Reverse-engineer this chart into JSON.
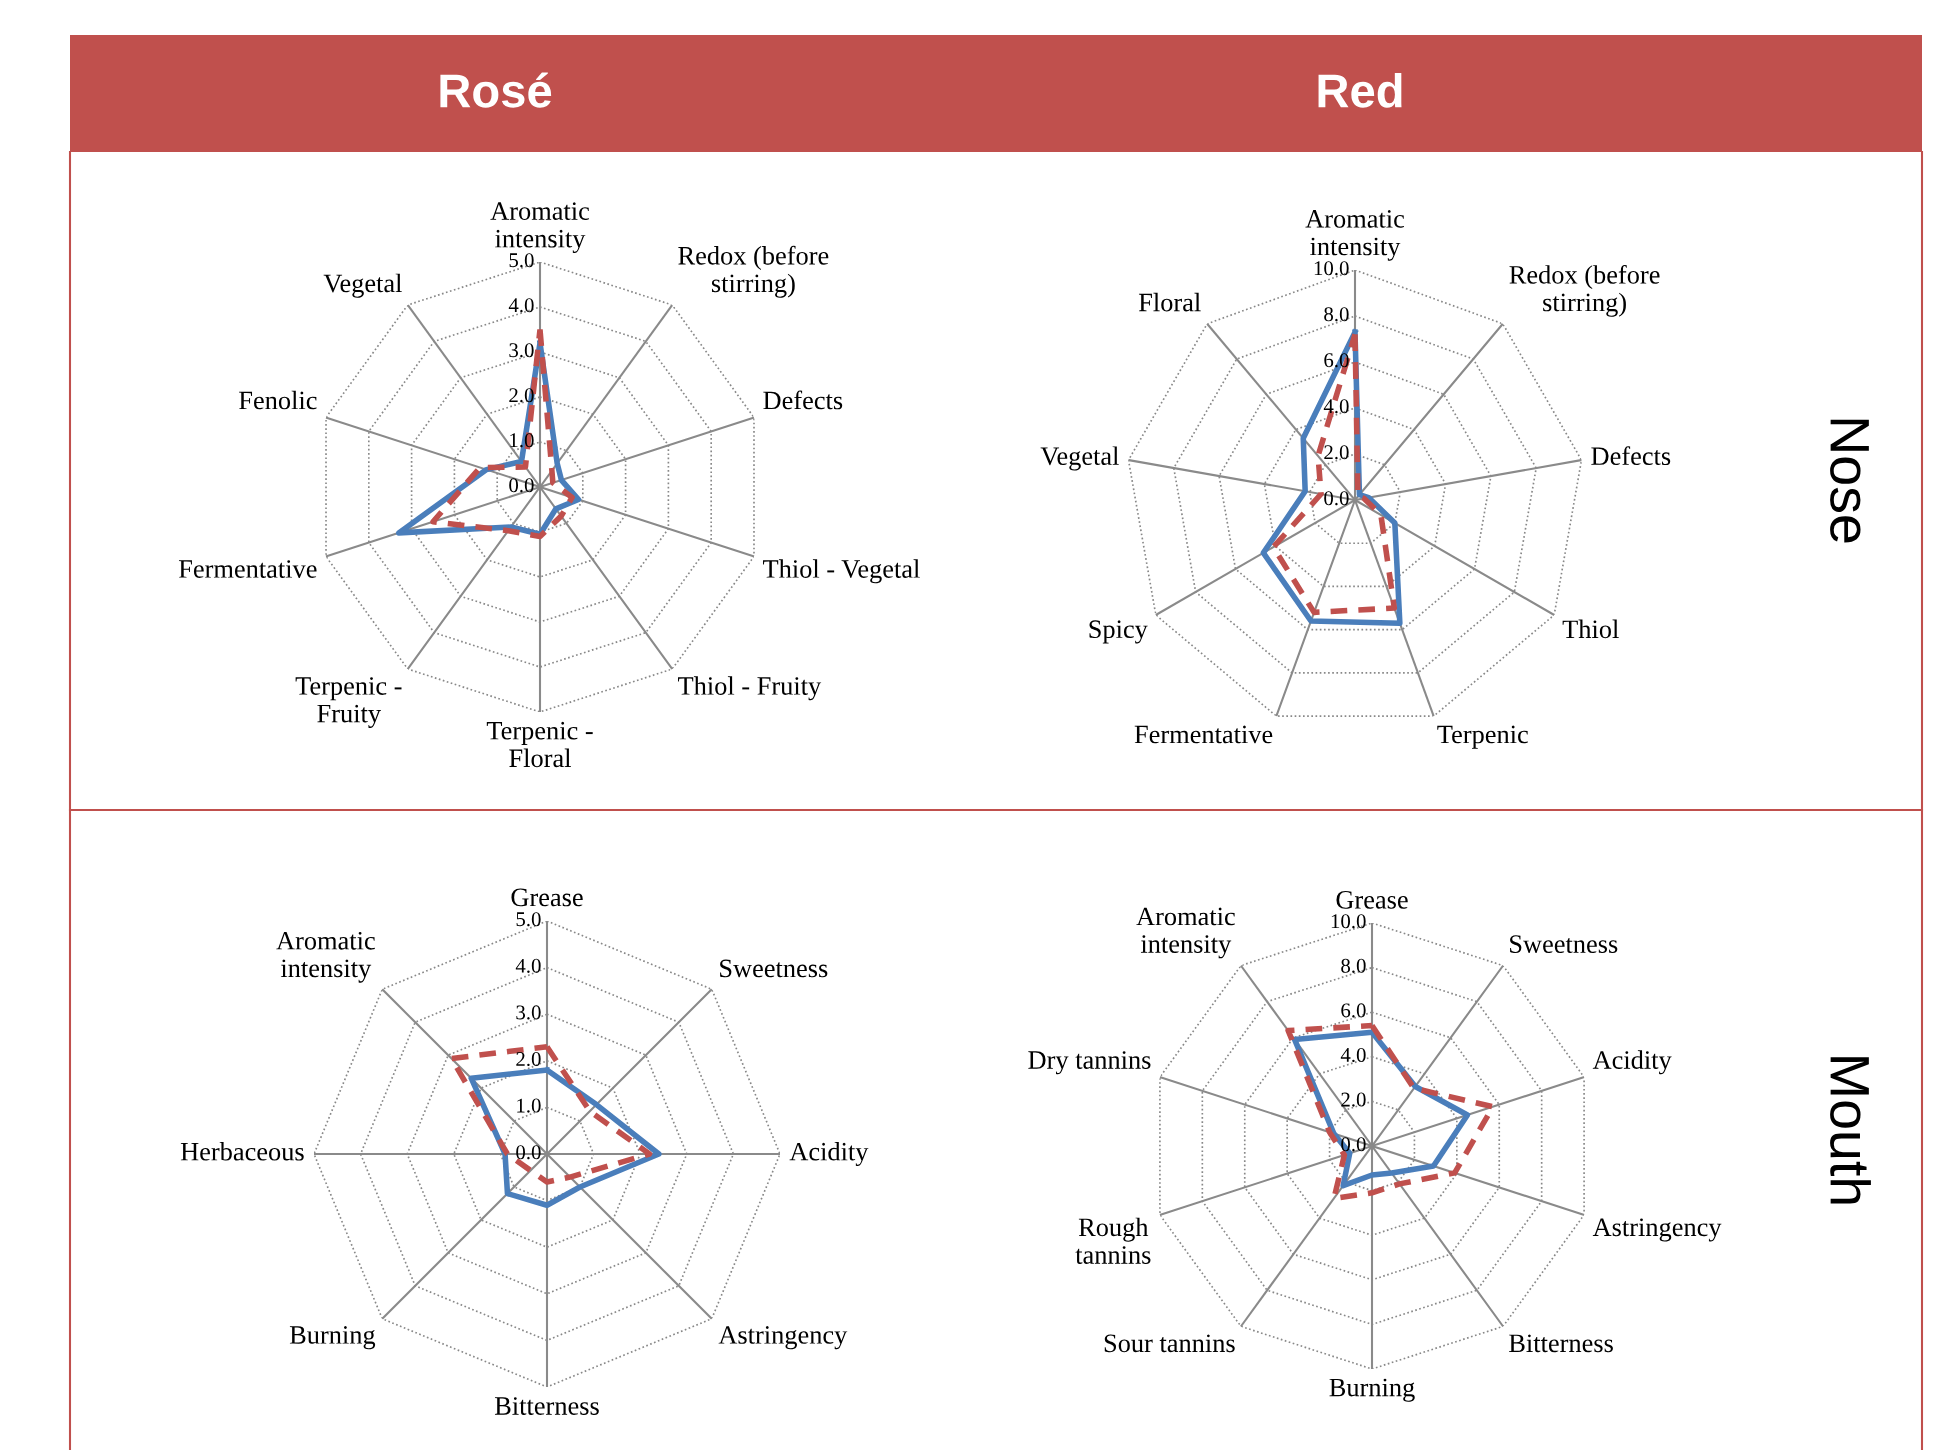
{
  "chart_data": [
    {
      "type": "radar",
      "title": "Rosé",
      "categories": [
        "Aromatic\nintensity",
        "Redox (before\nstirring)",
        "Defects",
        "Thiol - Vegetal",
        "Thiol - Fruity",
        "Terpenic -\nFloral",
        "Terpenic -\nFruity",
        "Fermentative",
        "Fenolic",
        "Vegetal"
      ],
      "ylim": [
        0,
        5
      ],
      "yticks": [
        {
          "value": 0,
          "label": "0.0"
        },
        {
          "value": 1,
          "label": "1.0"
        },
        {
          "value": 2,
          "label": "2.0"
        },
        {
          "value": 3,
          "label": "3.0"
        },
        {
          "value": 4,
          "label": "4.0"
        },
        {
          "value": 5,
          "label": "5.0"
        }
      ],
      "grid": true,
      "legend": false,
      "marker": "none",
      "series": [
        {
          "color": "#4a7ebb",
          "line_style": "solid",
          "values": [
            3.2,
            0.65,
            0.5,
            0.9,
            0.6,
            1.05,
            1.1,
            3.3,
            1.25,
            0.7
          ]
        },
        {
          "color": "#c0504d",
          "line_style": "dashed",
          "values": [
            3.5,
            0.45,
            0.3,
            0.75,
            0.8,
            1.1,
            1.2,
            2.5,
            1.4,
            0.55
          ]
        }
      ]
    },
    {
      "type": "radar",
      "title": "Red",
      "annotations": [
        "Nose"
      ],
      "categories": [
        "Aromatic\nintensity",
        "Redox (before\nstirring)",
        "Defects",
        "Thiol",
        "Terpenic",
        "Fermentative",
        "Spicy",
        "Vegetal",
        "Floral"
      ],
      "ylim": [
        0,
        10
      ],
      "yticks": [
        {
          "value": 0,
          "label": "0.0"
        },
        {
          "value": 2,
          "label": "2.0"
        },
        {
          "value": 4,
          "label": "4.0"
        },
        {
          "value": 6,
          "label": "6.0"
        },
        {
          "value": 8,
          "label": "8.0"
        },
        {
          "value": 10,
          "label": "10.0"
        }
      ],
      "grid": true,
      "legend": false,
      "marker": "none",
      "series": [
        {
          "color": "#4a7ebb",
          "line_style": "solid",
          "values": [
            7.3,
            0.3,
            0.6,
            2.0,
            5.7,
            5.6,
            4.6,
            2.2,
            3.5
          ]
        },
        {
          "color": "#c0504d",
          "line_style": "dashed",
          "values": [
            7.2,
            0.2,
            0.4,
            1.3,
            5.0,
            5.2,
            4.1,
            1.5,
            2.5
          ]
        }
      ]
    },
    {
      "type": "radar",
      "categories": [
        "Grease",
        "Sweetness",
        "Acidity",
        "Astringency",
        "Bitterness",
        "Burning",
        "Herbaceous",
        "Aromatic\nintensity"
      ],
      "ylim": [
        0,
        5
      ],
      "yticks": [
        {
          "value": 0,
          "label": "0.0"
        },
        {
          "value": 1,
          "label": "1.0"
        },
        {
          "value": 2,
          "label": "2.0"
        },
        {
          "value": 3,
          "label": "3.0"
        },
        {
          "value": 4,
          "label": "4.0"
        },
        {
          "value": 5,
          "label": "5.0"
        }
      ],
      "grid": true,
      "legend": false,
      "marker": "none",
      "series": [
        {
          "color": "#4a7ebb",
          "line_style": "solid",
          "values": [
            1.8,
            1.5,
            2.4,
            1.0,
            1.1,
            1.2,
            0.9,
            2.3
          ]
        },
        {
          "color": "#c0504d",
          "line_style": "dashed",
          "values": [
            2.3,
            1.3,
            2.2,
            0.7,
            0.6,
            0.5,
            0.85,
            2.9
          ]
        }
      ]
    },
    {
      "type": "radar",
      "annotations": [
        "Mouth"
      ],
      "categories": [
        "Grease",
        "Sweetness",
        "Acidity",
        "Astringency",
        "Bitterness",
        "Burning",
        "Sour tannins",
        "Rough\ntannins",
        "Dry tannins",
        "Aromatic\nintensity"
      ],
      "ylim": [
        0,
        10
      ],
      "yticks": [
        {
          "value": 0,
          "label": "0.0"
        },
        {
          "value": 2,
          "label": "2.0"
        },
        {
          "value": 4,
          "label": "4.0"
        },
        {
          "value": 6,
          "label": "6.0"
        },
        {
          "value": 8,
          "label": "8.0"
        },
        {
          "value": 10,
          "label": "10.0"
        }
      ],
      "grid": true,
      "legend": false,
      "marker": "none",
      "series": [
        {
          "color": "#4a7ebb",
          "line_style": "solid",
          "values": [
            5.1,
            3.3,
            4.5,
            2.9,
            1.5,
            1.3,
            2.2,
            1.05,
            1.8,
            5.9
          ]
        },
        {
          "color": "#c0504d",
          "line_style": "dashed",
          "values": [
            5.4,
            3.2,
            5.7,
            3.9,
            2.1,
            2.1,
            2.9,
            1.3,
            2.0,
            6.4
          ]
        }
      ]
    }
  ]
}
